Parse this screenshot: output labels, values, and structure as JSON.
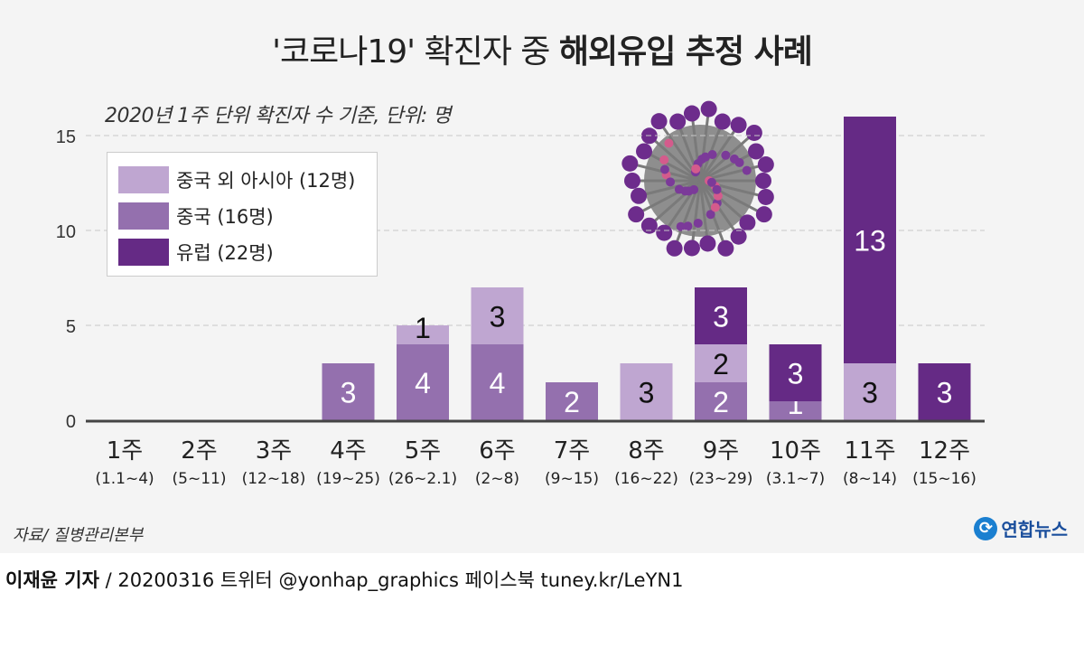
{
  "title": {
    "normal": "'코로나19' 확진자 중 ",
    "bold": "해외유입 추정 사례"
  },
  "subtitle": "2020년 1주 단위 확진자 수 기준, 단위: 명",
  "source": "자료/ 질병관리본부",
  "logo": {
    "text": "연합뉴스"
  },
  "credit": {
    "author": "이재윤 기자",
    "rest": " / 20200316   트위터 @yonhap_graphics  페이스북 tuney.kr/LeYN1"
  },
  "chart_data": {
    "type": "bar",
    "stacked": true,
    "categories": [
      "1주",
      "2주",
      "3주",
      "4주",
      "5주",
      "6주",
      "7주",
      "8주",
      "9주",
      "10주",
      "11주",
      "12주"
    ],
    "category_sublabels": [
      "(1.1~4)",
      "(5~11)",
      "(12~18)",
      "(19~25)",
      "(26~2.1)",
      "(2~8)",
      "(9~15)",
      "(16~22)",
      "(23~29)",
      "(3.1~7)",
      "(8~14)",
      "(15~16)"
    ],
    "series": [
      {
        "name": "중국 (16명)",
        "color": "#9470ae",
        "label_color": "#ffffff",
        "values": [
          0,
          0,
          0,
          3,
          4,
          4,
          2,
          0,
          2,
          1,
          0,
          0
        ]
      },
      {
        "name": "중국 외 아시아 (12명)",
        "color": "#bfa6d1",
        "label_color": "#111111",
        "values": [
          0,
          0,
          0,
          0,
          1,
          3,
          0,
          3,
          2,
          0,
          3,
          0
        ]
      },
      {
        "name": "유럽 (22명)",
        "color": "#652a85",
        "label_color": "#ffffff",
        "values": [
          0,
          0,
          0,
          0,
          0,
          0,
          0,
          0,
          3,
          3,
          13,
          3
        ]
      }
    ],
    "legend_order": [
      1,
      0,
      2
    ],
    "ylim": [
      0,
      15
    ],
    "yticks": [
      0,
      5,
      10,
      15
    ],
    "grid": true,
    "legend_position": "top-left"
  }
}
